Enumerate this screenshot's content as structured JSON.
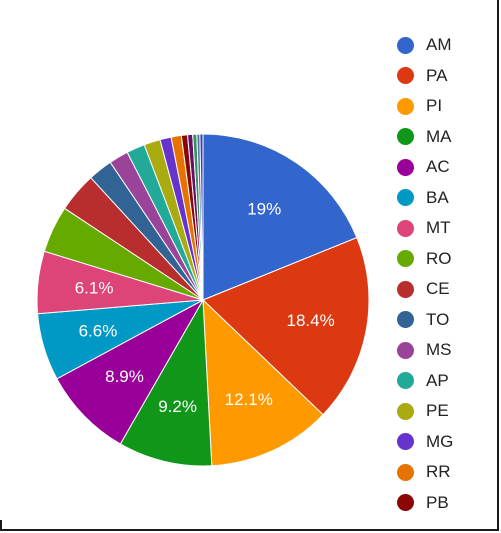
{
  "chart_data": {
    "type": "pie",
    "title": "",
    "legend_position": "right",
    "slices": [
      {
        "name": "AM",
        "value": 19.0,
        "color": "#3366cc",
        "label": "19%"
      },
      {
        "name": "PA",
        "value": 18.4,
        "color": "#dc3912",
        "label": "18.4%"
      },
      {
        "name": "PI",
        "value": 12.1,
        "color": "#ff9900",
        "label": "12.1%"
      },
      {
        "name": "MA",
        "value": 9.2,
        "color": "#109618",
        "label": "9.2%"
      },
      {
        "name": "AC",
        "value": 8.9,
        "color": "#990099",
        "label": "8.9%"
      },
      {
        "name": "BA",
        "value": 6.6,
        "color": "#0099c6",
        "label": "6.6%"
      },
      {
        "name": "MT",
        "value": 6.1,
        "color": "#dd4477",
        "label": "6.1%"
      },
      {
        "name": "RO",
        "value": 4.6,
        "color": "#66aa00",
        "label": ""
      },
      {
        "name": "CE",
        "value": 3.9,
        "color": "#b82e2e",
        "label": ""
      },
      {
        "name": "TO",
        "value": 2.4,
        "color": "#316395",
        "label": ""
      },
      {
        "name": "MS",
        "value": 1.9,
        "color": "#994499",
        "label": ""
      },
      {
        "name": "AP",
        "value": 1.8,
        "color": "#22aa99",
        "label": ""
      },
      {
        "name": "PE",
        "value": 1.6,
        "color": "#aaaa11",
        "label": ""
      },
      {
        "name": "MG",
        "value": 1.1,
        "color": "#6633cc",
        "label": ""
      },
      {
        "name": "RR",
        "value": 1.0,
        "color": "#e67300",
        "label": ""
      },
      {
        "name": "PB",
        "value": 0.6,
        "color": "#8b0707",
        "label": ""
      },
      {
        "name": "",
        "value": 0.5,
        "color": "#651067",
        "label": ""
      },
      {
        "name": "",
        "value": 0.4,
        "color": "#329262",
        "label": ""
      },
      {
        "name": "",
        "value": 0.3,
        "color": "#5574a6",
        "label": ""
      },
      {
        "name": "",
        "value": 0.3,
        "color": "#3b3eac",
        "label": ""
      }
    ]
  }
}
